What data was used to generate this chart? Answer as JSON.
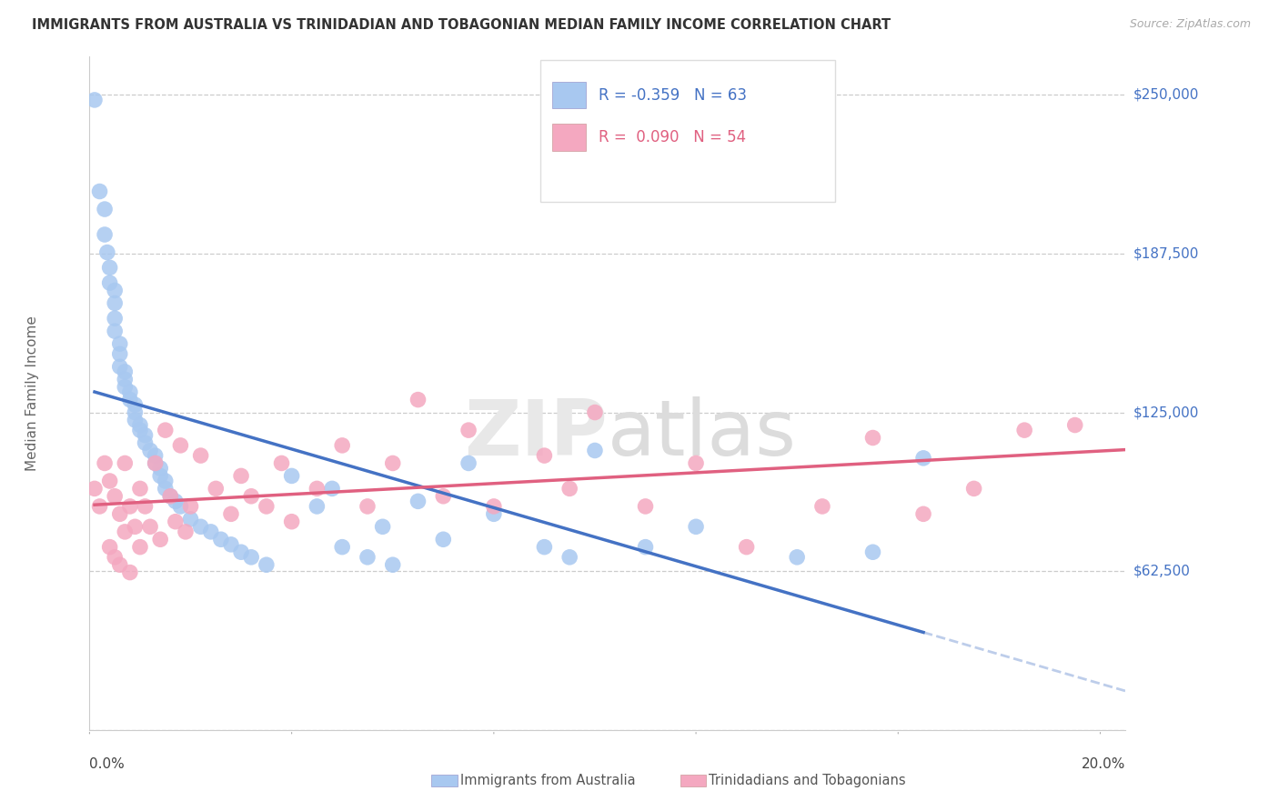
{
  "title": "IMMIGRANTS FROM AUSTRALIA VS TRINIDADIAN AND TOBAGONIAN MEDIAN FAMILY INCOME CORRELATION CHART",
  "source": "Source: ZipAtlas.com",
  "ylabel": "Median Family Income",
  "yticks": [
    0,
    62500,
    125000,
    187500,
    250000
  ],
  "ytick_labels": [
    "",
    "$62,500",
    "$125,000",
    "$187,500",
    "$250,000"
  ],
  "xlim": [
    0.0,
    0.205
  ],
  "ylim": [
    0,
    265000
  ],
  "legend_label1": "Immigrants from Australia",
  "legend_label2": "Trinidadians and Tobagonians",
  "r1": "-0.359",
  "n1": "63",
  "r2": "0.090",
  "n2": "54",
  "color_blue": "#A8C8F0",
  "color_pink": "#F4A8C0",
  "color_blue_line": "#4472C4",
  "color_pink_line": "#E06080",
  "background": "#FFFFFF",
  "blue_x": [
    0.001,
    0.002,
    0.003,
    0.003,
    0.0035,
    0.004,
    0.004,
    0.005,
    0.005,
    0.005,
    0.005,
    0.006,
    0.006,
    0.006,
    0.007,
    0.007,
    0.007,
    0.008,
    0.008,
    0.009,
    0.009,
    0.009,
    0.01,
    0.01,
    0.011,
    0.011,
    0.012,
    0.013,
    0.013,
    0.014,
    0.014,
    0.015,
    0.015,
    0.016,
    0.017,
    0.018,
    0.02,
    0.022,
    0.024,
    0.026,
    0.028,
    0.03,
    0.032,
    0.035,
    0.04,
    0.045,
    0.048,
    0.05,
    0.055,
    0.058,
    0.06,
    0.065,
    0.07,
    0.075,
    0.08,
    0.09,
    0.095,
    0.1,
    0.11,
    0.12,
    0.14,
    0.155,
    0.165
  ],
  "blue_y": [
    248000,
    212000,
    205000,
    195000,
    188000,
    182000,
    176000,
    173000,
    168000,
    162000,
    157000,
    152000,
    148000,
    143000,
    141000,
    138000,
    135000,
    133000,
    130000,
    128000,
    125000,
    122000,
    120000,
    118000,
    116000,
    113000,
    110000,
    108000,
    105000,
    103000,
    100000,
    98000,
    95000,
    92000,
    90000,
    88000,
    83000,
    80000,
    78000,
    75000,
    73000,
    70000,
    68000,
    65000,
    100000,
    88000,
    95000,
    72000,
    68000,
    80000,
    65000,
    90000,
    75000,
    105000,
    85000,
    72000,
    68000,
    110000,
    72000,
    80000,
    68000,
    70000,
    107000
  ],
  "pink_x": [
    0.001,
    0.002,
    0.003,
    0.004,
    0.004,
    0.005,
    0.005,
    0.006,
    0.006,
    0.007,
    0.007,
    0.008,
    0.008,
    0.009,
    0.01,
    0.01,
    0.011,
    0.012,
    0.013,
    0.014,
    0.015,
    0.016,
    0.017,
    0.018,
    0.019,
    0.02,
    0.022,
    0.025,
    0.028,
    0.03,
    0.032,
    0.035,
    0.038,
    0.04,
    0.045,
    0.05,
    0.055,
    0.06,
    0.065,
    0.07,
    0.075,
    0.08,
    0.09,
    0.095,
    0.1,
    0.11,
    0.12,
    0.13,
    0.145,
    0.155,
    0.165,
    0.175,
    0.185,
    0.195
  ],
  "pink_y": [
    95000,
    88000,
    105000,
    72000,
    98000,
    68000,
    92000,
    65000,
    85000,
    105000,
    78000,
    88000,
    62000,
    80000,
    95000,
    72000,
    88000,
    80000,
    105000,
    75000,
    118000,
    92000,
    82000,
    112000,
    78000,
    88000,
    108000,
    95000,
    85000,
    100000,
    92000,
    88000,
    105000,
    82000,
    95000,
    112000,
    88000,
    105000,
    130000,
    92000,
    118000,
    88000,
    108000,
    95000,
    125000,
    88000,
    105000,
    72000,
    88000,
    115000,
    85000,
    95000,
    118000,
    120000
  ]
}
